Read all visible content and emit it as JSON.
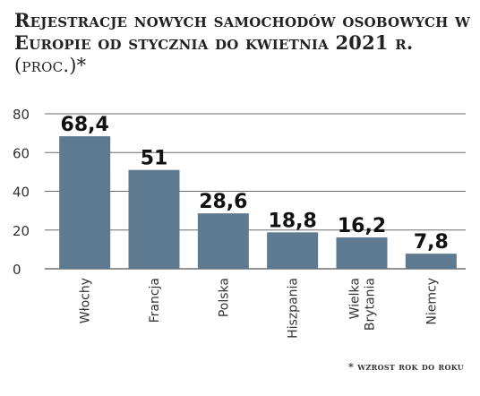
{
  "chart_data": {
    "type": "bar",
    "title": "Rejestracje nowych samochodów osobowych w Europie od stycznia do kwietnia 2021 r.",
    "unit": "(proc.)*",
    "categories": [
      "Włochy",
      "Francja",
      "Polska",
      "Hiszpania",
      "Wielka Brytania",
      "Niemcy"
    ],
    "values": [
      68.4,
      51,
      28.6,
      18.8,
      16.2,
      7.8
    ],
    "value_labels": [
      "68,4",
      "51",
      "28,6",
      "18,8",
      "16,2",
      "7,8"
    ],
    "ylim": [
      0,
      80
    ],
    "yticks": [
      "0",
      "20",
      "40",
      "60",
      "80"
    ],
    "grid": true,
    "bar_color": "#5d7a91",
    "footnote": "* wzrost rok do roku"
  }
}
